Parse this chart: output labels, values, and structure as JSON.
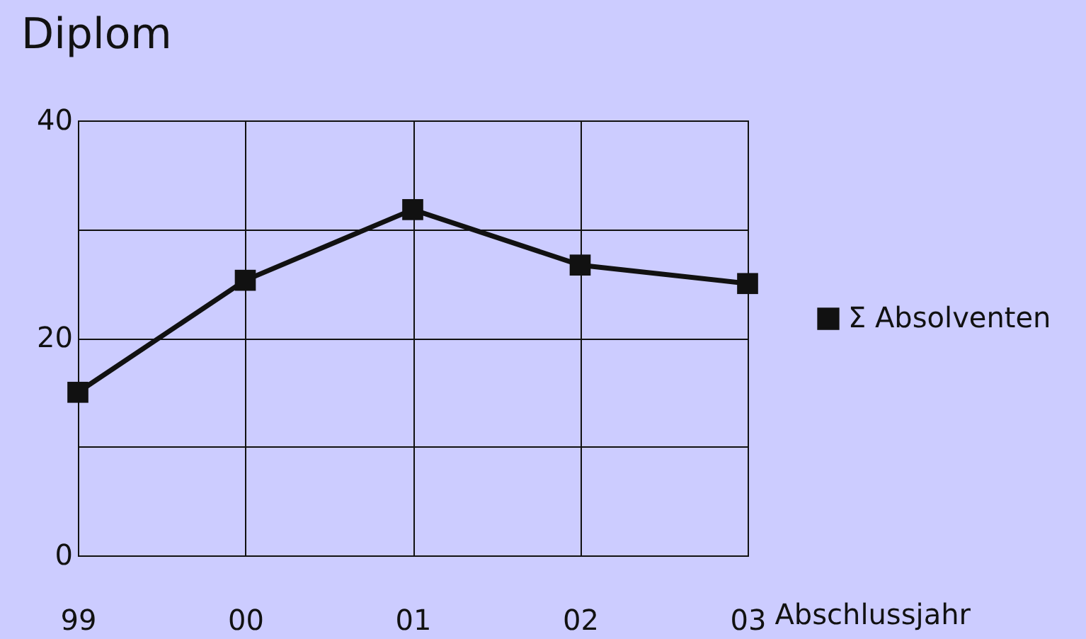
{
  "chart_data": {
    "type": "line",
    "title": "Diplom",
    "xlabel": "Abschlussjahr",
    "categories": [
      "99",
      "00",
      "01",
      "02",
      "03"
    ],
    "series": [
      {
        "name": "Σ Absolventen",
        "color": "#111111",
        "values": [
          15,
          25.3,
          31.8,
          26.7,
          25
        ]
      }
    ],
    "ylim": [
      0,
      40
    ],
    "yticks": [
      0,
      {
        "value": 10,
        "label": null
      },
      20,
      {
        "value": 30,
        "label": null
      },
      40
    ],
    "grid": true,
    "legend": "right",
    "marker": "square",
    "line_style": "solid"
  }
}
